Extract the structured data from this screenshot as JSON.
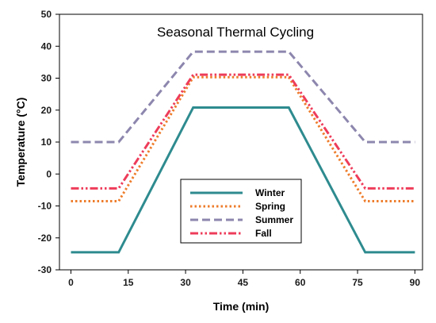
{
  "chart_data": {
    "type": "line",
    "title": "Seasonal Thermal Cycling",
    "xlabel": "Time (min)",
    "ylabel": "Temperature (°C)",
    "xlim": [
      -3,
      92
    ],
    "ylim": [
      -30,
      50
    ],
    "xticks": [
      0,
      15,
      30,
      45,
      60,
      75,
      90
    ],
    "yticks": [
      -30,
      -20,
      -10,
      0,
      10,
      20,
      30,
      40,
      50
    ],
    "grid": false,
    "legend_position": "lower-center",
    "series": [
      {
        "name": "Winter",
        "color": "#2e8b8f",
        "dash": "solid",
        "x": [
          0,
          12.5,
          32,
          57,
          77,
          90
        ],
        "y": [
          -24.5,
          -24.5,
          20.8,
          20.8,
          -24.5,
          -24.5
        ]
      },
      {
        "name": "Spring",
        "color": "#ee7d2c",
        "dash": "dotted",
        "x": [
          0,
          12.5,
          32,
          57,
          77,
          90
        ],
        "y": [
          -8.5,
          -8.5,
          30.3,
          30.3,
          -8.5,
          -8.5
        ]
      },
      {
        "name": "Summer",
        "color": "#8d87ae",
        "dash": "dashed",
        "x": [
          0,
          12.5,
          32,
          57,
          77,
          90
        ],
        "y": [
          10,
          10,
          38.3,
          38.3,
          10,
          10
        ]
      },
      {
        "name": "Fall",
        "color": "#ee3c5a",
        "dash": "dashdotdot",
        "x": [
          0,
          12.5,
          32,
          57,
          77,
          90
        ],
        "y": [
          -4.5,
          -4.5,
          31.1,
          31.1,
          -4.5,
          -4.5
        ]
      }
    ]
  }
}
